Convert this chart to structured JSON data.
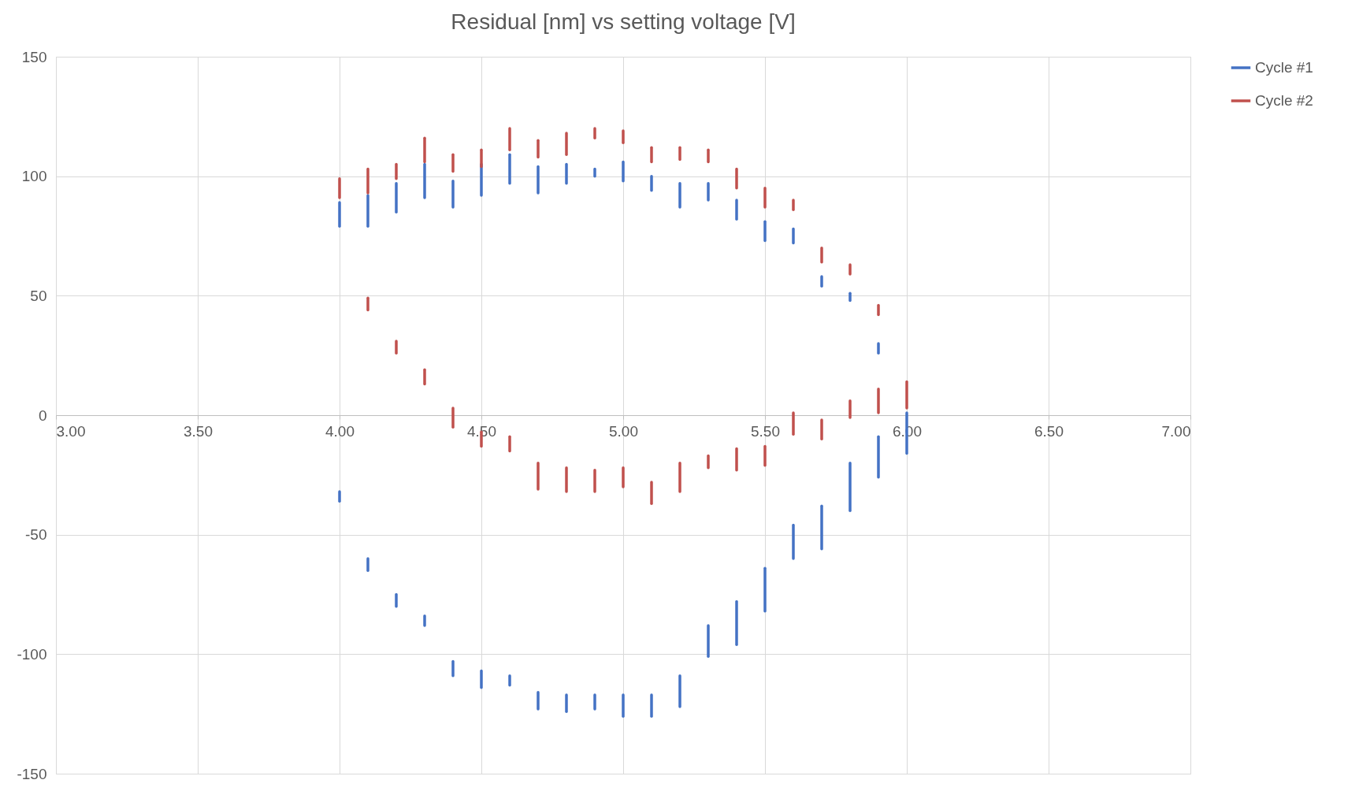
{
  "chart_data": {
    "type": "line",
    "title": "Residual [nm] vs setting voltage [V]",
    "xlim": [
      3,
      7
    ],
    "xticks": [
      {
        "value": 3,
        "label": "3.00"
      },
      {
        "value": 3.5,
        "label": "3.50"
      },
      {
        "value": 4,
        "label": "4.00"
      },
      {
        "value": 4.5,
        "label": "4.50"
      },
      {
        "value": 5,
        "label": "5.00"
      },
      {
        "value": 5.5,
        "label": "5.50"
      },
      {
        "value": 6,
        "label": "6.00"
      },
      {
        "value": 6.5,
        "label": "6.50"
      },
      {
        "value": 7,
        "label": "7.00"
      }
    ],
    "ylim": [
      -150,
      150
    ],
    "yticks": [
      -150,
      -100,
      -50,
      0,
      50,
      100,
      150
    ],
    "grid": true,
    "legend": "right",
    "marker": "none",
    "line_style": "solid",
    "series": [
      {
        "name": "Cycle #1",
        "color": "#4472c4",
        "x": [
          4,
          4
        ],
        "values": [
          79,
          89
        ]
      },
      {
        "color": "#4472c4",
        "x": [
          4.1,
          4.1
        ],
        "values": [
          79,
          92
        ]
      },
      {
        "color": "#4472c4",
        "x": [
          4.2,
          4.2
        ],
        "values": [
          85,
          97
        ]
      },
      {
        "color": "#4472c4",
        "x": [
          4.3,
          4.3
        ],
        "values": [
          91,
          105
        ]
      },
      {
        "color": "#4472c4",
        "x": [
          4.4,
          4.4
        ],
        "values": [
          87,
          98
        ]
      },
      {
        "color": "#4472c4",
        "x": [
          4.5,
          4.5
        ],
        "values": [
          92,
          105
        ]
      },
      {
        "color": "#4472c4",
        "x": [
          4.6,
          4.6
        ],
        "values": [
          97,
          109
        ]
      },
      {
        "color": "#4472c4",
        "x": [
          4.7,
          4.7
        ],
        "values": [
          93,
          104
        ]
      },
      {
        "color": "#4472c4",
        "x": [
          4.8,
          4.8
        ],
        "values": [
          97,
          105
        ]
      },
      {
        "color": "#4472c4",
        "x": [
          4.9,
          4.9
        ],
        "values": [
          100,
          103
        ]
      },
      {
        "color": "#4472c4",
        "x": [
          5,
          5
        ],
        "values": [
          98,
          106
        ]
      },
      {
        "color": "#4472c4",
        "x": [
          5.1,
          5.1
        ],
        "values": [
          94,
          100
        ]
      },
      {
        "color": "#4472c4",
        "x": [
          5.2,
          5.2
        ],
        "values": [
          87,
          97
        ]
      },
      {
        "color": "#4472c4",
        "x": [
          5.3,
          5.3
        ],
        "values": [
          90,
          97
        ]
      },
      {
        "color": "#4472c4",
        "x": [
          5.4,
          5.4
        ],
        "values": [
          82,
          90
        ]
      },
      {
        "color": "#4472c4",
        "x": [
          5.5,
          5.5
        ],
        "values": [
          73,
          81
        ]
      },
      {
        "color": "#4472c4",
        "x": [
          5.6,
          5.6
        ],
        "values": [
          72,
          78
        ]
      },
      {
        "color": "#4472c4",
        "x": [
          5.7,
          5.7
        ],
        "values": [
          54,
          58
        ]
      },
      {
        "color": "#4472c4",
        "x": [
          5.8,
          5.8
        ],
        "values": [
          48,
          51
        ]
      },
      {
        "color": "#4472c4",
        "x": [
          5.9,
          5.9
        ],
        "values": [
          26,
          30
        ]
      },
      {
        "color": "#4472c4",
        "x": [
          6,
          6
        ],
        "values": [
          -16,
          1
        ]
      },
      {
        "color": "#4472c4",
        "x": [
          4,
          4
        ],
        "values": [
          -36,
          -32
        ]
      },
      {
        "color": "#4472c4",
        "x": [
          4.1,
          4.1
        ],
        "values": [
          -65,
          -60
        ]
      },
      {
        "color": "#4472c4",
        "x": [
          4.2,
          4.2
        ],
        "values": [
          -80,
          -75
        ]
      },
      {
        "color": "#4472c4",
        "x": [
          4.3,
          4.3
        ],
        "values": [
          -88,
          -84
        ]
      },
      {
        "color": "#4472c4",
        "x": [
          4.4,
          4.4
        ],
        "values": [
          -109,
          -103
        ]
      },
      {
        "color": "#4472c4",
        "x": [
          4.5,
          4.5
        ],
        "values": [
          -114,
          -107
        ]
      },
      {
        "color": "#4472c4",
        "x": [
          4.6,
          4.6
        ],
        "values": [
          -113,
          -109
        ]
      },
      {
        "color": "#4472c4",
        "x": [
          4.7,
          4.7
        ],
        "values": [
          -123,
          -116
        ]
      },
      {
        "color": "#4472c4",
        "x": [
          4.8,
          4.8
        ],
        "values": [
          -124,
          -117
        ]
      },
      {
        "color": "#4472c4",
        "x": [
          4.9,
          4.9
        ],
        "values": [
          -123,
          -117
        ]
      },
      {
        "color": "#4472c4",
        "x": [
          5,
          5
        ],
        "values": [
          -126,
          -117
        ]
      },
      {
        "color": "#4472c4",
        "x": [
          5.1,
          5.1
        ],
        "values": [
          -126,
          -117
        ]
      },
      {
        "color": "#4472c4",
        "x": [
          5.2,
          5.2
        ],
        "values": [
          -122,
          -109
        ]
      },
      {
        "color": "#4472c4",
        "x": [
          5.3,
          5.3
        ],
        "values": [
          -101,
          -88
        ]
      },
      {
        "color": "#4472c4",
        "x": [
          5.4,
          5.4
        ],
        "values": [
          -96,
          -78
        ]
      },
      {
        "color": "#4472c4",
        "x": [
          5.5,
          5.5
        ],
        "values": [
          -82,
          -64
        ]
      },
      {
        "color": "#4472c4",
        "x": [
          5.6,
          5.6
        ],
        "values": [
          -60,
          -46
        ]
      },
      {
        "color": "#4472c4",
        "x": [
          5.7,
          5.7
        ],
        "values": [
          -56,
          -38
        ]
      },
      {
        "color": "#4472c4",
        "x": [
          5.8,
          5.8
        ],
        "values": [
          -40,
          -20
        ]
      },
      {
        "color": "#4472c4",
        "x": [
          5.9,
          5.9
        ],
        "values": [
          -26,
          -9
        ]
      },
      {
        "name": "Cycle #2",
        "color": "#c0504d",
        "x": [
          4,
          4
        ],
        "values": [
          91,
          99
        ]
      },
      {
        "color": "#c0504d",
        "x": [
          4.1,
          4.1
        ],
        "values": [
          93,
          103
        ]
      },
      {
        "color": "#c0504d",
        "x": [
          4.2,
          4.2
        ],
        "values": [
          99,
          105
        ]
      },
      {
        "color": "#c0504d",
        "x": [
          4.3,
          4.3
        ],
        "values": [
          106,
          116
        ]
      },
      {
        "color": "#c0504d",
        "x": [
          4.4,
          4.4
        ],
        "values": [
          102,
          109
        ]
      },
      {
        "color": "#c0504d",
        "x": [
          4.5,
          4.5
        ],
        "values": [
          104,
          111
        ]
      },
      {
        "color": "#c0504d",
        "x": [
          4.6,
          4.6
        ],
        "values": [
          111,
          120
        ]
      },
      {
        "color": "#c0504d",
        "x": [
          4.7,
          4.7
        ],
        "values": [
          108,
          115
        ]
      },
      {
        "color": "#c0504d",
        "x": [
          4.8,
          4.8
        ],
        "values": [
          109,
          118
        ]
      },
      {
        "color": "#c0504d",
        "x": [
          4.9,
          4.9
        ],
        "values": [
          116,
          120
        ]
      },
      {
        "color": "#c0504d",
        "x": [
          5,
          5
        ],
        "values": [
          114,
          119
        ]
      },
      {
        "color": "#c0504d",
        "x": [
          5.1,
          5.1
        ],
        "values": [
          106,
          112
        ]
      },
      {
        "color": "#c0504d",
        "x": [
          5.2,
          5.2
        ],
        "values": [
          107,
          112
        ]
      },
      {
        "color": "#c0504d",
        "x": [
          5.3,
          5.3
        ],
        "values": [
          106,
          111
        ]
      },
      {
        "color": "#c0504d",
        "x": [
          5.4,
          5.4
        ],
        "values": [
          95,
          103
        ]
      },
      {
        "color": "#c0504d",
        "x": [
          5.5,
          5.5
        ],
        "values": [
          87,
          95
        ]
      },
      {
        "color": "#c0504d",
        "x": [
          5.6,
          5.6
        ],
        "values": [
          86,
          90
        ]
      },
      {
        "color": "#c0504d",
        "x": [
          5.7,
          5.7
        ],
        "values": [
          64,
          70
        ]
      },
      {
        "color": "#c0504d",
        "x": [
          5.8,
          5.8
        ],
        "values": [
          59,
          63
        ]
      },
      {
        "color": "#c0504d",
        "x": [
          5.9,
          5.9
        ],
        "values": [
          42,
          46
        ]
      },
      {
        "color": "#c0504d",
        "x": [
          6,
          6
        ],
        "values": [
          3,
          14
        ]
      },
      {
        "color": "#c0504d",
        "x": [
          4.1,
          4.1
        ],
        "values": [
          44,
          49
        ]
      },
      {
        "color": "#c0504d",
        "x": [
          4.2,
          4.2
        ],
        "values": [
          26,
          31
        ]
      },
      {
        "color": "#c0504d",
        "x": [
          4.3,
          4.3
        ],
        "values": [
          13,
          19
        ]
      },
      {
        "color": "#c0504d",
        "x": [
          4.4,
          4.4
        ],
        "values": [
          -5,
          3
        ]
      },
      {
        "color": "#c0504d",
        "x": [
          4.5,
          4.5
        ],
        "values": [
          -13,
          -7
        ]
      },
      {
        "color": "#c0504d",
        "x": [
          4.6,
          4.6
        ],
        "values": [
          -15,
          -9
        ]
      },
      {
        "color": "#c0504d",
        "x": [
          4.7,
          4.7
        ],
        "values": [
          -31,
          -20
        ]
      },
      {
        "color": "#c0504d",
        "x": [
          4.8,
          4.8
        ],
        "values": [
          -32,
          -22
        ]
      },
      {
        "color": "#c0504d",
        "x": [
          4.9,
          4.9
        ],
        "values": [
          -32,
          -23
        ]
      },
      {
        "color": "#c0504d",
        "x": [
          5,
          5
        ],
        "values": [
          -30,
          -22
        ]
      },
      {
        "color": "#c0504d",
        "x": [
          5.1,
          5.1
        ],
        "values": [
          -37,
          -28
        ]
      },
      {
        "color": "#c0504d",
        "x": [
          5.2,
          5.2
        ],
        "values": [
          -32,
          -20
        ]
      },
      {
        "color": "#c0504d",
        "x": [
          5.3,
          5.3
        ],
        "values": [
          -22,
          -17
        ]
      },
      {
        "color": "#c0504d",
        "x": [
          5.4,
          5.4
        ],
        "values": [
          -23,
          -14
        ]
      },
      {
        "color": "#c0504d",
        "x": [
          5.5,
          5.5
        ],
        "values": [
          -21,
          -13
        ]
      },
      {
        "color": "#c0504d",
        "x": [
          5.6,
          5.6
        ],
        "values": [
          -8,
          1
        ]
      },
      {
        "color": "#c0504d",
        "x": [
          5.7,
          5.7
        ],
        "values": [
          -10,
          -2
        ]
      },
      {
        "color": "#c0504d",
        "x": [
          5.8,
          5.8
        ],
        "values": [
          -1,
          6
        ]
      },
      {
        "color": "#c0504d",
        "x": [
          5.9,
          5.9
        ],
        "values": [
          1,
          11
        ]
      }
    ]
  }
}
